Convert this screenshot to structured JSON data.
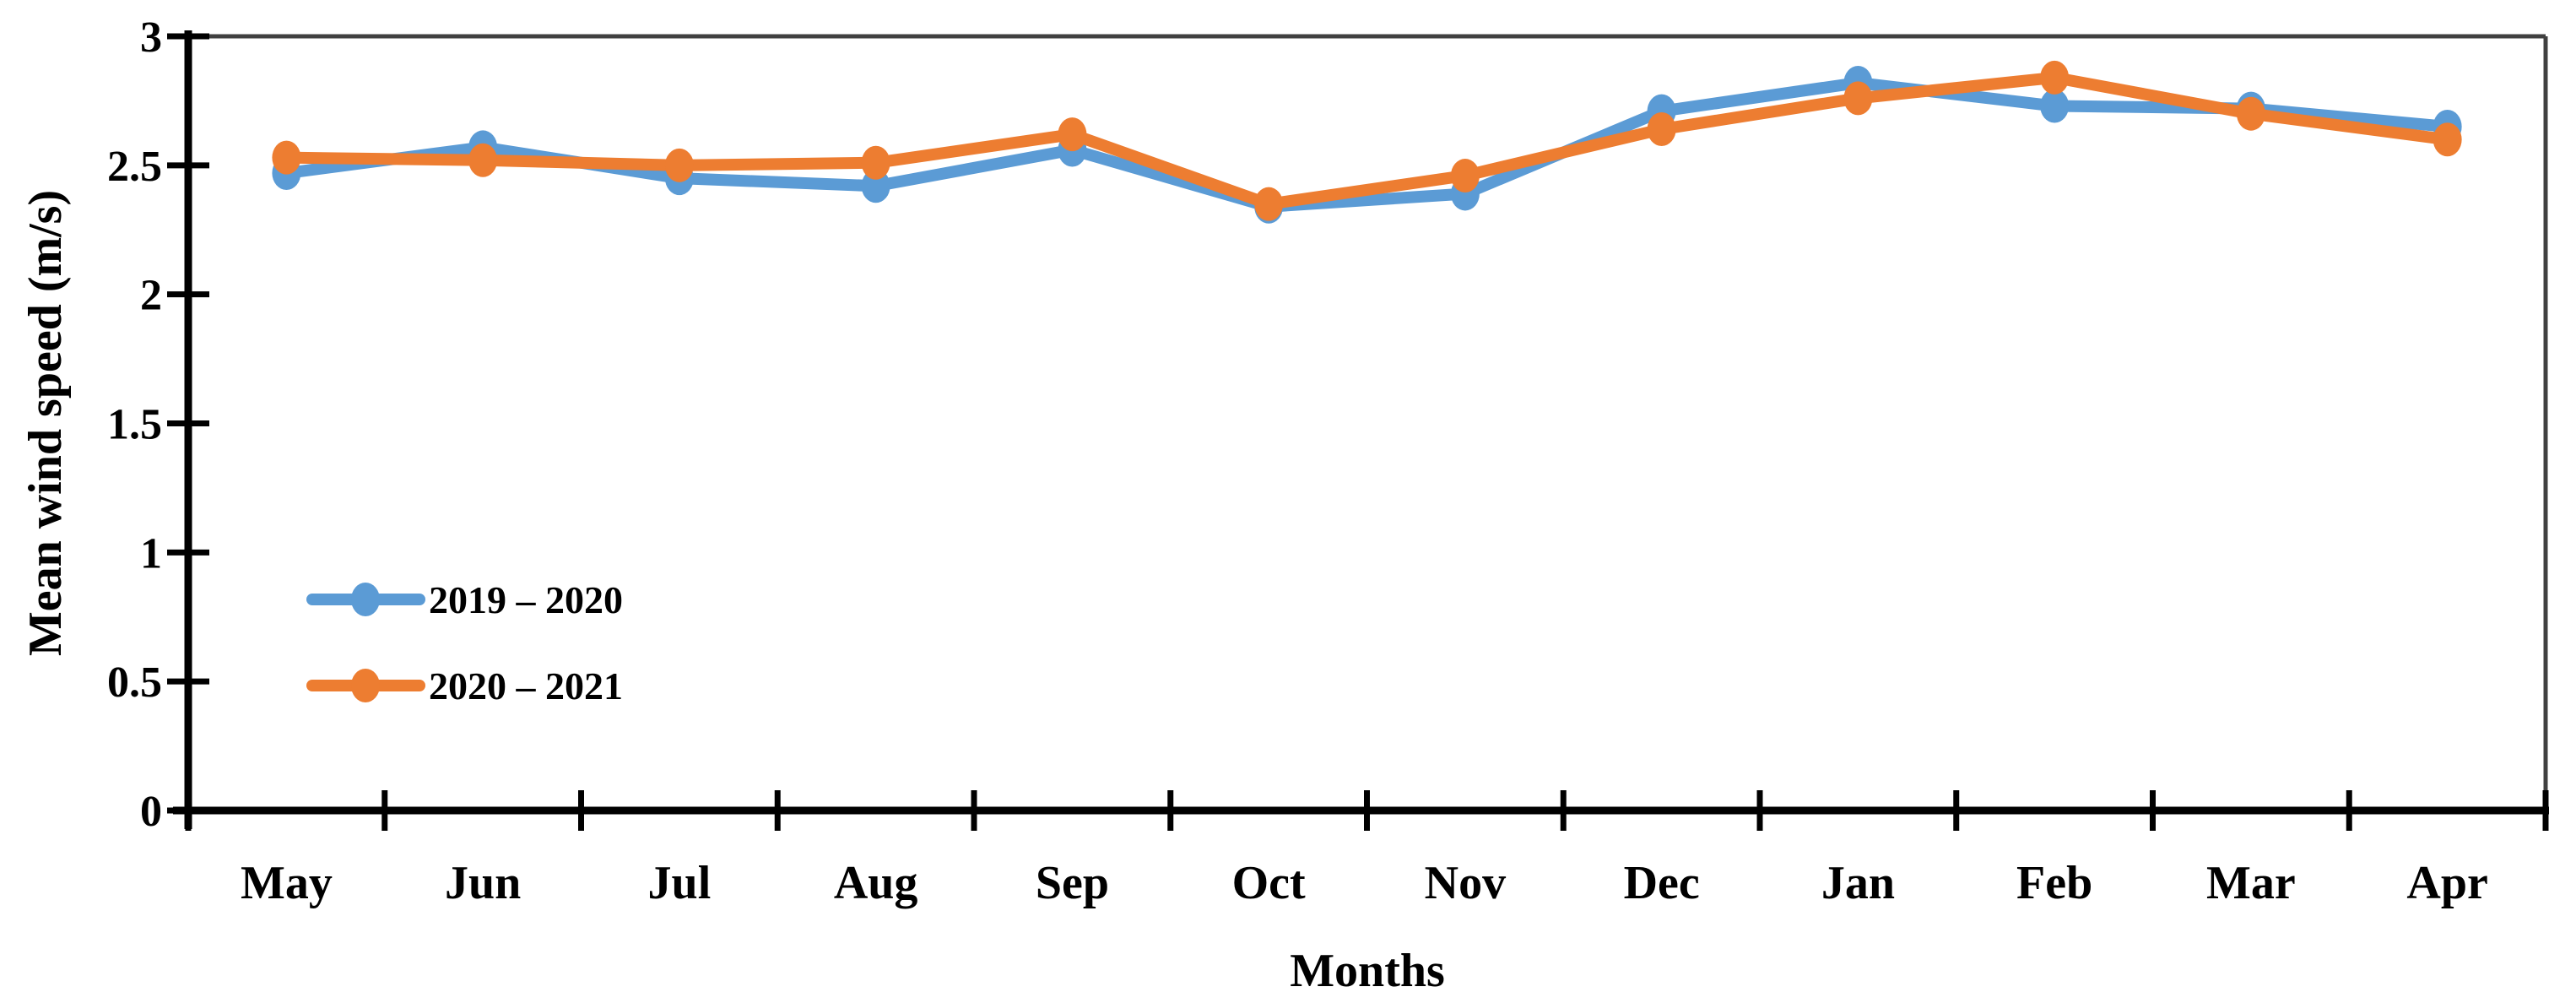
{
  "chart_data": {
    "type": "line",
    "xlabel": "Months",
    "ylabel": "Mean wind speed (m/s)",
    "categories": [
      "May",
      "Jun",
      "Jul",
      "Aug",
      "Sep",
      "Oct",
      "Nov",
      "Dec",
      "Jan",
      "Feb",
      "Mar",
      "Apr"
    ],
    "y_ticks": [
      "0",
      "0.5",
      "1",
      "1.5",
      "2",
      "2.5",
      "3"
    ],
    "ylim": [
      0,
      3
    ],
    "grid": false,
    "legend_position": "inside-left",
    "marker": "circle",
    "series": [
      {
        "name": "2019 – 2020",
        "color": "#5B9BD5",
        "values": [
          2.47,
          2.57,
          2.45,
          2.42,
          2.56,
          2.34,
          2.39,
          2.71,
          2.82,
          2.73,
          2.72,
          2.65
        ]
      },
      {
        "name": "2020 – 2021",
        "color": "#ED7D31",
        "values": [
          2.53,
          2.52,
          2.5,
          2.51,
          2.62,
          2.35,
          2.46,
          2.64,
          2.76,
          2.84,
          2.7,
          2.6
        ]
      }
    ]
  }
}
